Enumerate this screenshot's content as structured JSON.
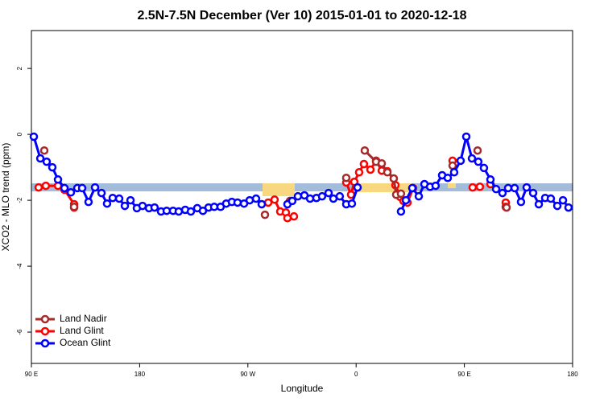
{
  "chart_data": {
    "type": "line",
    "title": "2.5N-7.5N December (Ver 10)   2015-01-01 to 2020-12-18",
    "xlabel": "Longitude",
    "ylabel": "XCO2 - MLO trend (ppm)",
    "xlim": [
      90,
      540
    ],
    "ylim": [
      -6.95,
      3.15
    ],
    "xticks": [
      {
        "value": 90,
        "label": "90 E"
      },
      180,
      {
        "value": 270,
        "label": "90 W"
      },
      {
        "value": 360,
        "label": "0"
      },
      {
        "value": 450,
        "label": "90 E"
      },
      {
        "value": 540,
        "label": "180"
      }
    ],
    "yticks": [
      2,
      0,
      -2,
      -4,
      -6
    ],
    "legend": "bottom-left",
    "series": [
      {
        "name": "Land Nadir",
        "color": "#a52a2a",
        "x": [
          100.7,
          null,
          125.5,
          null,
          284.2,
          null,
          305,
          null,
          351.8,
          null,
          367.2,
          376.6,
          381.3,
          386,
          391.3,
          393.3,
          397.3,
          null,
          440.2,
          null,
          461,
          null,
          485.1
        ],
        "values": [
          -0.49,
          null,
          -2.2,
          null,
          -2.44,
          null,
          -2.02,
          null,
          -1.32,
          null,
          -0.49,
          -0.83,
          -0.88,
          -1.15,
          -1.34,
          -1.83,
          -1.8,
          null,
          -0.95,
          null,
          -0.49,
          null,
          -2.22
        ]
      },
      {
        "name": "Land Glint",
        "color": "#ff0000",
        "x": [
          96,
          102,
          112.1,
          117.5,
          125.5,
          125.5,
          null,
          286.9,
          292.2,
          296.9,
          301.6,
          302.9,
          308.3,
          null,
          351.8,
          355.8,
          358.5,
          362.5,
          366.5,
          371.9,
          376.6,
          381.3,
          386,
          391.3,
          392.7,
          396.7,
          399.4,
          402.7,
          407.4,
          null,
          440.2,
          null,
          456.9,
          462.9,
          null,
          471.7,
          null,
          484.4,
          484.4
        ],
        "values": [
          -1.61,
          -1.56,
          -1.56,
          -1.68,
          -2.12,
          -2.22,
          null,
          -2.07,
          -1.98,
          -2.34,
          -2.37,
          -2.54,
          -2.49,
          null,
          -1.46,
          -1.83,
          -1.44,
          -1.15,
          -0.9,
          -1.07,
          -0.8,
          -1.1,
          -1.12,
          -1.34,
          -1.54,
          -1.9,
          -2.02,
          -2.07,
          -1.63,
          null,
          -0.8,
          null,
          -1.61,
          -1.59,
          null,
          -1.51,
          null,
          -2.07,
          -2.2
        ]
      },
      {
        "name": "Ocean Glint",
        "color": "#0000ff",
        "x": [
          92,
          97.4,
          102.7,
          107.4,
          112.1,
          117.5,
          122.8,
          128.2,
          132.2,
          137.5,
          142.9,
          148.3,
          152.9,
          157.6,
          163,
          167.7,
          172.4,
          177.7,
          182.4,
          187.8,
          192.4,
          197.8,
          202.5,
          207.8,
          212.5,
          217.9,
          222.6,
          227.9,
          232.6,
          237.3,
          242,
          247.3,
          252,
          256.7,
          261.4,
          266.8,
          271.5,
          276.8,
          281.5,
          null,
          302.9,
          306.9,
          311.6,
          317,
          321.7,
          327,
          331.7,
          337.1,
          341.1,
          346.4,
          351.8,
          356.5,
          361.2,
          null,
          397.3,
          401.4,
          406.7,
          412.1,
          416.8,
          421.5,
          426.1,
          431.5,
          436.2,
          441.5,
          446.9,
          451.6,
          456.3,
          461.6,
          466.3,
          471.7,
          476.4,
          481.7,
          486.4,
          491.8,
          497.1,
          501.8,
          507.2,
          511.9,
          517.2,
          521.9,
          527.3,
          532,
          536.6
        ],
        "values": [
          -0.07,
          -0.73,
          -0.83,
          -1.0,
          -1.37,
          -1.63,
          -1.76,
          -1.63,
          -1.63,
          -2.05,
          -1.61,
          -1.78,
          -2.1,
          -1.93,
          -1.95,
          -2.17,
          -2.0,
          -2.24,
          -2.17,
          -2.24,
          -2.22,
          -2.34,
          -2.32,
          -2.32,
          -2.34,
          -2.29,
          -2.34,
          -2.24,
          -2.32,
          -2.22,
          -2.2,
          -2.2,
          -2.1,
          -2.05,
          -2.07,
          -2.1,
          -2.0,
          -1.95,
          -2.12,
          null,
          -2.12,
          -2.02,
          -1.88,
          -1.85,
          -1.95,
          -1.93,
          -1.88,
          -1.78,
          -1.95,
          -1.88,
          -2.12,
          -2.1,
          -1.61,
          null,
          -2.34,
          -2.0,
          -1.63,
          -1.88,
          -1.51,
          -1.59,
          -1.56,
          -1.24,
          -1.32,
          -1.15,
          -0.8,
          -0.07,
          -0.73,
          -0.83,
          -1.02,
          -1.37,
          -1.66,
          -1.78,
          -1.63,
          -1.63,
          -2.05,
          -1.61,
          -1.78,
          -2.12,
          -1.93,
          -1.95,
          -2.17,
          -2.0,
          -2.22
        ]
      }
    ]
  }
}
